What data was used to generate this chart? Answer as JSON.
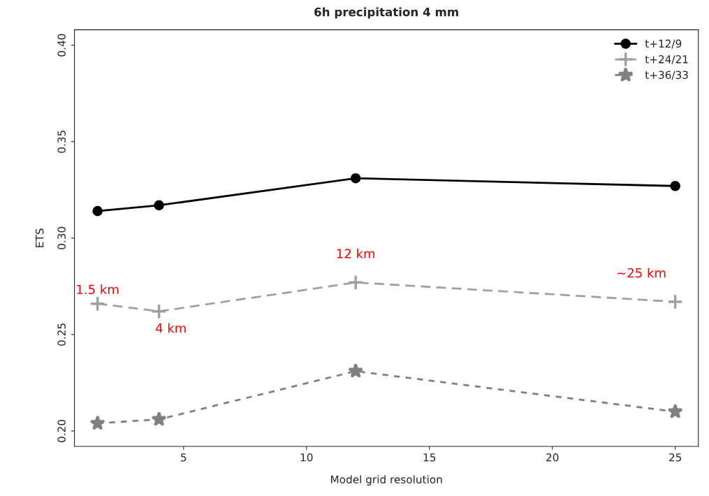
{
  "chart_data": {
    "type": "line",
    "title": "6h precipitation 4 mm",
    "xlabel": "Model grid resolution",
    "ylabel": "ETS",
    "x": [
      1.5,
      4,
      12,
      25
    ],
    "series": [
      {
        "name": "t+12/9",
        "color": "#000000",
        "values": [
          0.314,
          0.317,
          0.331,
          0.327
        ],
        "marker": "circle",
        "line_style": "solid"
      },
      {
        "name": "t+24/21",
        "color": "#a0a0a0",
        "values": [
          0.266,
          0.262,
          0.277,
          0.267
        ],
        "marker": "cross",
        "line_style": "dashed"
      },
      {
        "name": "t+36/33",
        "color": "#808080",
        "values": [
          0.204,
          0.206,
          0.231,
          0.21
        ],
        "marker": "star",
        "line_style": "dotted"
      }
    ],
    "xlim": [
      0.56,
      25.94
    ],
    "ylim": [
      0.192,
      0.408
    ],
    "xticks": [
      5,
      10,
      15,
      20,
      25
    ],
    "yticks": [
      {
        "value": 0.2,
        "label": "0.20"
      },
      0.25,
      {
        "value": 0.3,
        "label": "0.30"
      },
      0.35,
      {
        "value": 0.4,
        "label": "0.40"
      }
    ],
    "annotations": [
      {
        "text": "1.5 km",
        "x": 1.5,
        "y": 0.266
      },
      {
        "text": "4 km",
        "x": 4,
        "y": 0.262
      },
      {
        "text": "12 km",
        "x": 12,
        "y": 0.277
      },
      {
        "text": "~25 km",
        "x": 25,
        "y": 0.267
      }
    ],
    "legend": "top right",
    "grid": false
  }
}
